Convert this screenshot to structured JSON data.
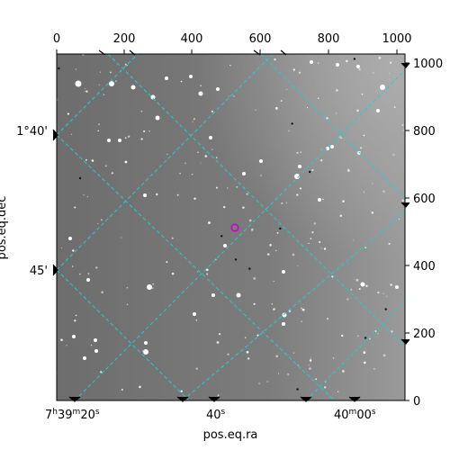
{
  "axes": {
    "top_ticks": [
      "0",
      "200",
      "400",
      "600",
      "800",
      "1000"
    ],
    "right_ticks": [
      "0",
      "200",
      "400",
      "600",
      "800",
      "1000"
    ],
    "ra_ticks": [
      {
        "main": "7",
        "sup1": "h",
        "mid": "39",
        "sup2": "m",
        "end": "20",
        "sup3": "s"
      },
      {
        "main": "40",
        "sup1": "s",
        "mid": "",
        "sup2": "",
        "end": "",
        "sup3": ""
      },
      {
        "main": "40",
        "sup1": "m",
        "mid": "00",
        "sup2": "s",
        "end": "",
        "sup3": ""
      }
    ],
    "dec_ticks": [
      "1°40'",
      "45'"
    ],
    "xlabel": "pos.eq.ra",
    "ylabel": "pos.eq.dec"
  },
  "image": {
    "background": "#7a7a7a",
    "grid_color": "#20d0d0",
    "marker_color": "#d000d0"
  }
}
